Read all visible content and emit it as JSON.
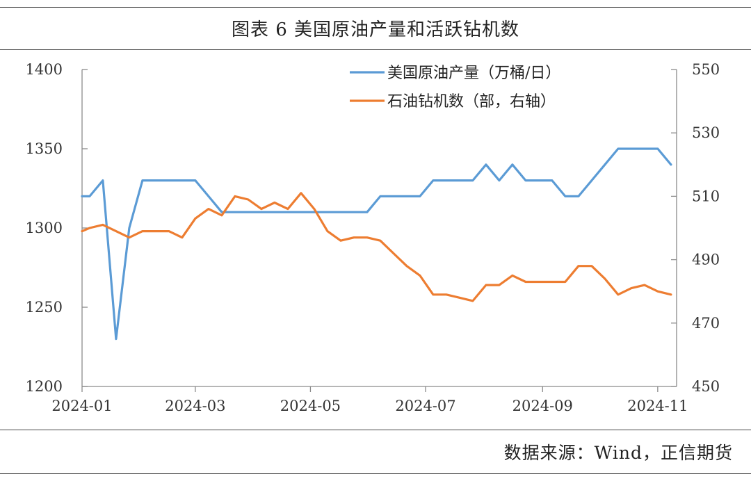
{
  "header": {
    "title": "图表 6   美国原油产量和活跃钻机数"
  },
  "footer": {
    "source": "数据来源：Wind，正信期货"
  },
  "colors": {
    "production": "#5b9bd5",
    "rigs": "#ed7d31"
  },
  "chart_data": {
    "type": "line",
    "x_ticks": [
      "2024-01",
      "2024-03",
      "2024-05",
      "2024-07",
      "2024-09",
      "2024-11"
    ],
    "y_left": {
      "ticks": [
        "1400",
        "1350",
        "1300",
        "1250",
        "1200"
      ],
      "ylim": [
        1200,
        1400
      ]
    },
    "y_right": {
      "ticks": [
        "550",
        "530",
        "510",
        "490",
        "470",
        "450"
      ],
      "ylim": [
        450,
        550
      ]
    },
    "legend_position": "top-right",
    "series": [
      {
        "name": "美国原油产量（万桶/日）",
        "axis": "left",
        "color": "#5b9bd5",
        "points": [
          [
            "2024-01-01",
            1320
          ],
          [
            "2024-01-05",
            1320
          ],
          [
            "2024-01-12",
            1330
          ],
          [
            "2024-01-19",
            1230
          ],
          [
            "2024-01-26",
            1300
          ],
          [
            "2024-02-02",
            1330
          ],
          [
            "2024-02-09",
            1330
          ],
          [
            "2024-02-16",
            1330
          ],
          [
            "2024-02-23",
            1330
          ],
          [
            "2024-03-01",
            1330
          ],
          [
            "2024-03-08",
            1320
          ],
          [
            "2024-03-15",
            1310
          ],
          [
            "2024-03-22",
            1310
          ],
          [
            "2024-03-29",
            1310
          ],
          [
            "2024-04-05",
            1310
          ],
          [
            "2024-04-12",
            1310
          ],
          [
            "2024-04-19",
            1310
          ],
          [
            "2024-04-26",
            1310
          ],
          [
            "2024-05-03",
            1310
          ],
          [
            "2024-05-10",
            1310
          ],
          [
            "2024-05-17",
            1310
          ],
          [
            "2024-05-24",
            1310
          ],
          [
            "2024-05-31",
            1310
          ],
          [
            "2024-06-07",
            1320
          ],
          [
            "2024-06-14",
            1320
          ],
          [
            "2024-06-21",
            1320
          ],
          [
            "2024-06-28",
            1320
          ],
          [
            "2024-07-05",
            1330
          ],
          [
            "2024-07-12",
            1330
          ],
          [
            "2024-07-19",
            1330
          ],
          [
            "2024-07-26",
            1330
          ],
          [
            "2024-08-02",
            1340
          ],
          [
            "2024-08-09",
            1330
          ],
          [
            "2024-08-16",
            1340
          ],
          [
            "2024-08-23",
            1330
          ],
          [
            "2024-08-30",
            1330
          ],
          [
            "2024-09-06",
            1330
          ],
          [
            "2024-09-13",
            1320
          ],
          [
            "2024-09-20",
            1320
          ],
          [
            "2024-09-27",
            1330
          ],
          [
            "2024-10-04",
            1340
          ],
          [
            "2024-10-11",
            1350
          ],
          [
            "2024-10-18",
            1350
          ],
          [
            "2024-10-25",
            1350
          ],
          [
            "2024-11-01",
            1350
          ],
          [
            "2024-11-08",
            1340
          ]
        ]
      },
      {
        "name": "石油钻机数（部，右轴）",
        "axis": "right",
        "color": "#ed7d31",
        "points": [
          [
            "2024-01-01",
            499
          ],
          [
            "2024-01-05",
            500
          ],
          [
            "2024-01-12",
            501
          ],
          [
            "2024-01-19",
            499
          ],
          [
            "2024-01-26",
            497
          ],
          [
            "2024-02-02",
            499
          ],
          [
            "2024-02-09",
            499
          ],
          [
            "2024-02-16",
            499
          ],
          [
            "2024-02-23",
            497
          ],
          [
            "2024-03-01",
            503
          ],
          [
            "2024-03-08",
            506
          ],
          [
            "2024-03-15",
            504
          ],
          [
            "2024-03-22",
            510
          ],
          [
            "2024-03-29",
            509
          ],
          [
            "2024-04-05",
            506
          ],
          [
            "2024-04-12",
            508
          ],
          [
            "2024-04-19",
            506
          ],
          [
            "2024-04-26",
            511
          ],
          [
            "2024-05-03",
            506
          ],
          [
            "2024-05-10",
            499
          ],
          [
            "2024-05-17",
            496
          ],
          [
            "2024-05-24",
            497
          ],
          [
            "2024-05-31",
            497
          ],
          [
            "2024-06-07",
            496
          ],
          [
            "2024-06-14",
            492
          ],
          [
            "2024-06-21",
            488
          ],
          [
            "2024-06-28",
            485
          ],
          [
            "2024-07-05",
            479
          ],
          [
            "2024-07-12",
            479
          ],
          [
            "2024-07-19",
            478
          ],
          [
            "2024-07-26",
            477
          ],
          [
            "2024-08-02",
            482
          ],
          [
            "2024-08-09",
            482
          ],
          [
            "2024-08-16",
            485
          ],
          [
            "2024-08-23",
            483
          ],
          [
            "2024-08-30",
            483
          ],
          [
            "2024-09-06",
            483
          ],
          [
            "2024-09-13",
            483
          ],
          [
            "2024-09-20",
            488
          ],
          [
            "2024-09-27",
            488
          ],
          [
            "2024-10-04",
            484
          ],
          [
            "2024-10-11",
            479
          ],
          [
            "2024-10-18",
            481
          ],
          [
            "2024-10-25",
            482
          ],
          [
            "2024-11-01",
            480
          ],
          [
            "2024-11-08",
            479
          ]
        ]
      }
    ]
  }
}
